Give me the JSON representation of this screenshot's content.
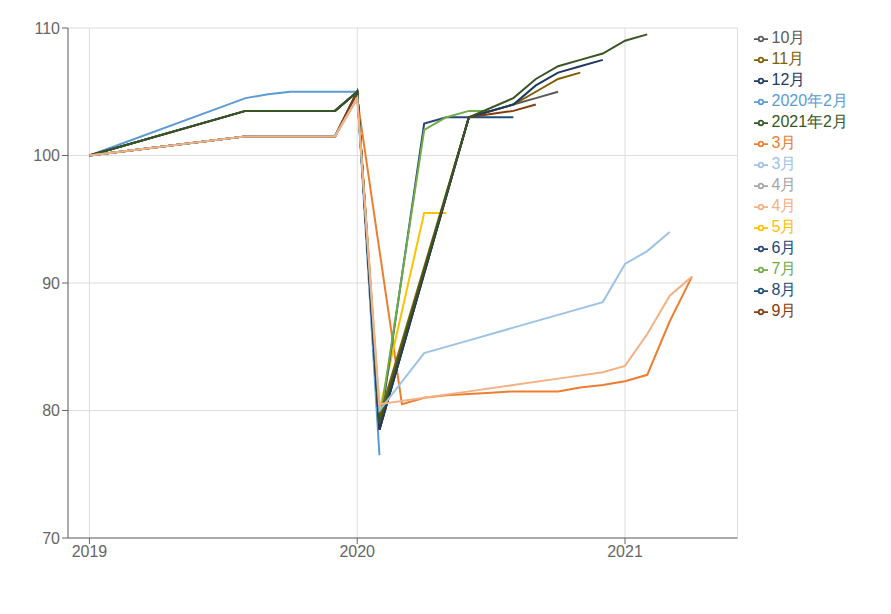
{
  "chart_data": {
    "type": "line",
    "xlim": [
      2018.92,
      2021.42
    ],
    "ylim": [
      70,
      110
    ],
    "xticks": [
      2019,
      2020,
      2021
    ],
    "yticks": [
      70,
      80,
      90,
      100,
      110
    ],
    "grid": true,
    "legend": "right",
    "series": [
      {
        "name": "2020年2月",
        "color": "#5b9bd5",
        "x": [
          2019.0,
          2019.583,
          2019.667,
          2019.75,
          2019.833,
          2019.917,
          2020.0,
          2020.083
        ],
        "values": [
          100.0,
          104.5,
          104.8,
          105.0,
          105.0,
          105.0,
          105.0,
          76.5
        ]
      },
      {
        "name": "3月",
        "color": "#ed7d31",
        "x": [
          2019.0,
          2019.583,
          2019.917,
          2020.0,
          2020.167,
          2020.25,
          2020.333,
          2020.417,
          2020.5,
          2020.583,
          2020.667,
          2020.75,
          2020.833,
          2020.917,
          2021.0,
          2021.083,
          2021.167,
          2021.25
        ],
        "values": [
          100.0,
          101.5,
          101.5,
          104.5,
          80.5,
          81.0,
          81.2,
          81.3,
          81.4,
          81.5,
          81.5,
          81.5,
          81.8,
          82.0,
          82.3,
          82.8,
          87.0,
          90.5
        ]
      },
      {
        "name": "4月",
        "color": "#a5a5a5",
        "x": [
          2019.0,
          2019.583,
          2019.917,
          2020.0
        ],
        "values": [
          100.0,
          101.5,
          101.5,
          105.0
        ]
      },
      {
        "name": "5月",
        "color": "#ffc000",
        "x": [
          2019.0,
          2019.583,
          2019.917,
          2020.0,
          2020.083,
          2020.25,
          2020.333
        ],
        "values": [
          100.0,
          101.5,
          101.5,
          105.0,
          80.0,
          95.5,
          95.5
        ]
      },
      {
        "name": "6月",
        "color": "#264478",
        "x": [
          2019.0,
          2019.583,
          2019.917,
          2020.0,
          2020.083,
          2020.25,
          2020.333,
          2020.417
        ],
        "values": [
          100.0,
          101.5,
          101.5,
          105.0,
          78.5,
          102.5,
          103.0,
          103.0
        ]
      },
      {
        "name": "7月",
        "color": "#70ad47",
        "x": [
          2019.0,
          2019.583,
          2019.917,
          2020.0,
          2020.083,
          2020.25,
          2020.333,
          2020.417,
          2020.5
        ],
        "values": [
          100.0,
          101.5,
          101.5,
          105.0,
          79.0,
          102.0,
          103.0,
          103.5,
          103.5
        ]
      },
      {
        "name": "8月",
        "color": "#1f4e79",
        "x": [
          2019.0,
          2019.583,
          2019.917,
          2020.0,
          2020.083,
          2020.417,
          2020.583
        ],
        "values": [
          100.0,
          101.5,
          101.5,
          105.0,
          78.5,
          103.0,
          103.0
        ]
      },
      {
        "name": "9月",
        "color": "#843c0c",
        "x": [
          2019.0,
          2019.583,
          2019.917,
          2020.0,
          2020.083,
          2020.417,
          2020.583,
          2020.667
        ],
        "values": [
          100.0,
          101.5,
          101.5,
          105.0,
          78.5,
          103.0,
          103.5,
          104.0
        ]
      },
      {
        "name": "10月",
        "color": "#595959",
        "x": [
          2019.0,
          2019.583,
          2019.917,
          2020.0,
          2020.083,
          2020.417,
          2020.583,
          2020.667,
          2020.75
        ],
        "values": [
          100.0,
          103.5,
          103.5,
          105.0,
          79.0,
          103.0,
          104.0,
          104.5,
          105.0
        ]
      },
      {
        "name": "11月",
        "color": "#7f6000",
        "x": [
          2019.0,
          2019.583,
          2019.917,
          2020.0,
          2020.083,
          2020.417,
          2020.583,
          2020.667,
          2020.75,
          2020.833
        ],
        "values": [
          100.0,
          103.5,
          103.5,
          105.0,
          79.5,
          103.0,
          104.0,
          105.0,
          106.0,
          106.5
        ]
      },
      {
        "name": "12月",
        "color": "#1f3864",
        "x": [
          2019.0,
          2019.583,
          2019.917,
          2020.0,
          2020.083,
          2020.417,
          2020.583,
          2020.667,
          2020.75,
          2020.833,
          2020.917
        ],
        "values": [
          100.0,
          103.5,
          103.5,
          105.0,
          78.5,
          103.0,
          104.0,
          105.5,
          106.5,
          107.0,
          107.5
        ]
      },
      {
        "name": "2021年2月",
        "color": "#375623",
        "x": [
          2019.0,
          2019.583,
          2019.917,
          2020.0,
          2020.083,
          2020.417,
          2020.583,
          2020.667,
          2020.75,
          2020.833,
          2020.917,
          2021.0,
          2021.083
        ],
        "values": [
          100.0,
          103.5,
          103.5,
          105.0,
          79.0,
          103.0,
          104.5,
          106.0,
          107.0,
          107.5,
          108.0,
          109.0,
          109.5
        ]
      },
      {
        "name": "3月",
        "color": "#9dc3e6",
        "x": [
          2019.0,
          2019.583,
          2019.917,
          2020.0,
          2020.083,
          2020.25,
          2020.417,
          2020.583,
          2020.75,
          2020.917,
          2021.0,
          2021.083,
          2021.167
        ],
        "values": [
          100.0,
          101.5,
          101.5,
          104.5,
          80.0,
          84.5,
          85.5,
          86.5,
          87.5,
          88.5,
          91.5,
          92.5,
          94.0
        ]
      },
      {
        "name": "4月",
        "color": "#f4b183",
        "x": [
          2019.0,
          2019.583,
          2019.917,
          2020.0,
          2020.083,
          2020.25,
          2020.417,
          2020.583,
          2020.75,
          2020.917,
          2021.0,
          2021.083,
          2021.167,
          2021.25
        ],
        "values": [
          100.0,
          101.5,
          101.5,
          104.5,
          80.5,
          81.0,
          81.5,
          82.0,
          82.5,
          83.0,
          83.5,
          86.0,
          89.0,
          90.5
        ]
      }
    ]
  }
}
